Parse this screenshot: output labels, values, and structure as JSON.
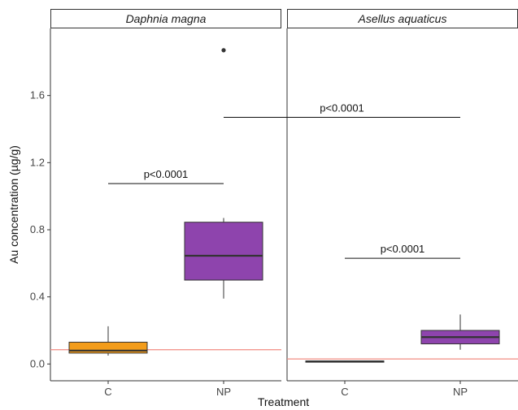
{
  "chart_data": {
    "type": "boxplot",
    "xlabel": "Treatment",
    "ylabel": "Au concentration (µg/g)",
    "ylim": [
      -0.1,
      2.0
    ],
    "yticks": [
      0.0,
      0.4,
      0.8,
      1.2,
      1.6
    ],
    "ytick_labels": [
      "0.0",
      "0.4",
      "0.8",
      "1.2",
      "1.6"
    ],
    "categories": [
      "C",
      "NP"
    ],
    "grid": false,
    "colors": {
      "C": "#f39c1a",
      "NP": "#8e44ad",
      "reference_line": "#f28b82",
      "outline": "#333333"
    },
    "panels": [
      {
        "title": "Daphnia magna",
        "reference_line": 0.085,
        "boxes": [
          {
            "category": "C",
            "min": 0.05,
            "q1": 0.065,
            "median": 0.08,
            "q3": 0.13,
            "max": 0.225,
            "outliers": []
          },
          {
            "category": "NP",
            "min": 0.39,
            "q1": 0.5,
            "median": 0.645,
            "q3": 0.845,
            "max": 0.87,
            "outliers": [
              1.87
            ]
          }
        ],
        "comparisons": [
          {
            "from": "C",
            "to": "NP",
            "y": 1.075,
            "label": "p<0.0001"
          }
        ]
      },
      {
        "title": "Asellus aquaticus",
        "reference_line": 0.03,
        "boxes": [
          {
            "category": "C",
            "min": 0.01,
            "q1": 0.012,
            "median": 0.015,
            "q3": 0.018,
            "max": 0.02,
            "outliers": []
          },
          {
            "category": "NP",
            "min": 0.085,
            "q1": 0.12,
            "median": 0.16,
            "q3": 0.2,
            "max": 0.295,
            "outliers": []
          }
        ],
        "comparisons": [
          {
            "from": "C",
            "to": "NP",
            "y": 0.63,
            "label": "p<0.0001"
          }
        ]
      }
    ],
    "cross_panel_comparisons": [
      {
        "from_panel": 0,
        "from": "NP",
        "to_panel": 1,
        "to": "NP",
        "y": 1.47,
        "label": "p<0.0001"
      }
    ]
  }
}
